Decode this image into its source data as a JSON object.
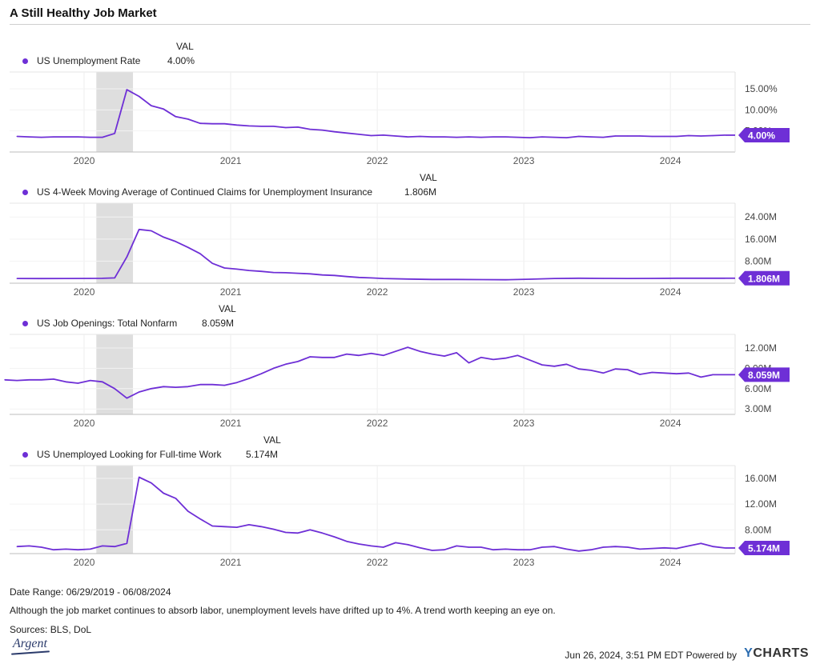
{
  "header": {
    "title": "A Still Healthy Job Market"
  },
  "legend_value_header": "VAL",
  "chart_data": [
    {
      "type": "line",
      "series": [
        {
          "name": "US Unemployment Rate",
          "value_label": "4.00%",
          "end_badge": "4.00%"
        }
      ],
      "x": [
        "2019-07",
        "2019-08",
        "2019-09",
        "2019-10",
        "2019-11",
        "2019-12",
        "2020-01",
        "2020-02",
        "2020-03",
        "2020-04",
        "2020-05",
        "2020-06",
        "2020-07",
        "2020-08",
        "2020-09",
        "2020-10",
        "2020-11",
        "2020-12",
        "2021-01",
        "2021-02",
        "2021-03",
        "2021-04",
        "2021-05",
        "2021-06",
        "2021-07",
        "2021-08",
        "2021-09",
        "2021-10",
        "2021-11",
        "2021-12",
        "2022-01",
        "2022-02",
        "2022-03",
        "2022-04",
        "2022-05",
        "2022-06",
        "2022-07",
        "2022-08",
        "2022-09",
        "2022-10",
        "2022-11",
        "2022-12",
        "2023-01",
        "2023-02",
        "2023-03",
        "2023-04",
        "2023-05",
        "2023-06",
        "2023-07",
        "2023-08",
        "2023-09",
        "2023-10",
        "2023-11",
        "2023-12",
        "2024-01",
        "2024-02",
        "2024-03",
        "2024-04",
        "2024-05"
      ],
      "values": [
        3.7,
        3.6,
        3.5,
        3.6,
        3.6,
        3.6,
        3.5,
        3.5,
        4.4,
        14.8,
        13.2,
        11.0,
        10.2,
        8.4,
        7.8,
        6.8,
        6.7,
        6.7,
        6.4,
        6.2,
        6.1,
        6.1,
        5.8,
        5.9,
        5.4,
        5.2,
        4.8,
        4.5,
        4.2,
        3.9,
        4.0,
        3.8,
        3.6,
        3.7,
        3.6,
        3.6,
        3.5,
        3.6,
        3.5,
        3.6,
        3.6,
        3.5,
        3.4,
        3.6,
        3.5,
        3.4,
        3.7,
        3.6,
        3.5,
        3.8,
        3.8,
        3.8,
        3.7,
        3.7,
        3.7,
        3.9,
        3.8,
        3.9,
        4.0
      ],
      "yticks": [
        "15.00%",
        "10.00%",
        "5.00%"
      ],
      "ytick_values": [
        15,
        10,
        5
      ],
      "xticks": [
        "2020",
        "2021",
        "2022",
        "2023",
        "2024"
      ],
      "ylim": [
        0,
        19
      ],
      "recession": [
        "2020-02",
        "2020-04"
      ],
      "color": "#6e2fd6"
    },
    {
      "type": "line",
      "series": [
        {
          "name": "US 4-Week Moving Average of Continued Claims for Unemployment Insurance",
          "value_label": "1.806M",
          "end_badge": "1.806M"
        }
      ],
      "x": [
        "2019-07",
        "2019-09",
        "2019-11",
        "2020-01",
        "2020-02",
        "2020-03",
        "2020-04",
        "2020-05",
        "2020-06",
        "2020-07",
        "2020-08",
        "2020-09",
        "2020-10",
        "2020-11",
        "2020-12",
        "2021-01",
        "2021-02",
        "2021-03",
        "2021-04",
        "2021-05",
        "2021-06",
        "2021-07",
        "2021-08",
        "2021-09",
        "2021-10",
        "2021-11",
        "2021-12",
        "2022-01",
        "2022-03",
        "2022-05",
        "2022-07",
        "2022-09",
        "2022-11",
        "2023-01",
        "2023-03",
        "2023-05",
        "2023-07",
        "2023-09",
        "2023-11",
        "2024-01",
        "2024-03",
        "2024-05"
      ],
      "values": [
        1.7,
        1.68,
        1.7,
        1.75,
        1.78,
        1.9,
        9.5,
        19.5,
        19.0,
        16.7,
        15.1,
        13.0,
        10.7,
        7.2,
        5.5,
        5.1,
        4.6,
        4.3,
        3.9,
        3.8,
        3.6,
        3.4,
        3.0,
        2.8,
        2.4,
        2.1,
        1.9,
        1.7,
        1.5,
        1.35,
        1.35,
        1.3,
        1.25,
        1.45,
        1.7,
        1.8,
        1.75,
        1.7,
        1.75,
        1.8,
        1.8,
        1.806
      ],
      "yticks": [
        "24.00M",
        "16.00M",
        "8.00M"
      ],
      "ytick_values": [
        24,
        16,
        8
      ],
      "xticks": [
        "2020",
        "2021",
        "2022",
        "2023",
        "2024"
      ],
      "ylim": [
        0,
        29
      ],
      "recession": [
        "2020-02",
        "2020-04"
      ],
      "color": "#6e2fd6"
    },
    {
      "type": "line",
      "series": [
        {
          "name": "US Job Openings: Total Nonfarm",
          "value_label": "8.059M",
          "end_badge": "8.059M"
        }
      ],
      "x": [
        "2019-06",
        "2019-07",
        "2019-08",
        "2019-09",
        "2019-10",
        "2019-11",
        "2019-12",
        "2020-01",
        "2020-02",
        "2020-03",
        "2020-04",
        "2020-05",
        "2020-06",
        "2020-07",
        "2020-08",
        "2020-09",
        "2020-10",
        "2020-11",
        "2020-12",
        "2021-01",
        "2021-02",
        "2021-03",
        "2021-04",
        "2021-05",
        "2021-06",
        "2021-07",
        "2021-08",
        "2021-09",
        "2021-10",
        "2021-11",
        "2021-12",
        "2022-01",
        "2022-02",
        "2022-03",
        "2022-04",
        "2022-05",
        "2022-06",
        "2022-07",
        "2022-08",
        "2022-09",
        "2022-10",
        "2022-11",
        "2022-12",
        "2023-01",
        "2023-02",
        "2023-03",
        "2023-04",
        "2023-05",
        "2023-06",
        "2023-07",
        "2023-08",
        "2023-09",
        "2023-10",
        "2023-11",
        "2023-12",
        "2024-01",
        "2024-02",
        "2024-03",
        "2024-04"
      ],
      "values": [
        7.3,
        7.2,
        7.3,
        7.3,
        7.4,
        7.0,
        6.8,
        7.2,
        7.0,
        6.0,
        4.6,
        5.5,
        6.0,
        6.3,
        6.2,
        6.3,
        6.6,
        6.6,
        6.5,
        6.9,
        7.5,
        8.2,
        9.0,
        9.6,
        10.0,
        10.7,
        10.6,
        10.6,
        11.1,
        10.9,
        11.2,
        10.9,
        11.5,
        12.1,
        11.5,
        11.1,
        10.8,
        11.3,
        9.8,
        10.6,
        10.3,
        10.5,
        10.9,
        10.2,
        9.5,
        9.3,
        9.6,
        8.9,
        8.7,
        8.3,
        8.9,
        8.8,
        8.1,
        8.4,
        8.3,
        8.2,
        8.3,
        7.7,
        8.059
      ],
      "yticks": [
        "12.00M",
        "9.00M",
        "6.00M",
        "3.00M"
      ],
      "ytick_values": [
        12,
        9,
        6,
        3
      ],
      "xticks": [
        "2020",
        "2021",
        "2022",
        "2023",
        "2024"
      ],
      "ylim": [
        2.2,
        14.0
      ],
      "recession": [
        "2020-02",
        "2020-04"
      ],
      "color": "#6e2fd6"
    },
    {
      "type": "line",
      "series": [
        {
          "name": "US Unemployed Looking for Full-time Work",
          "value_label": "5.174M",
          "end_badge": "5.174M"
        }
      ],
      "x": [
        "2019-07",
        "2019-08",
        "2019-09",
        "2019-10",
        "2019-11",
        "2019-12",
        "2020-01",
        "2020-02",
        "2020-03",
        "2020-04",
        "2020-05",
        "2020-06",
        "2020-07",
        "2020-08",
        "2020-09",
        "2020-10",
        "2020-11",
        "2020-12",
        "2021-01",
        "2021-02",
        "2021-03",
        "2021-04",
        "2021-05",
        "2021-06",
        "2021-07",
        "2021-08",
        "2021-09",
        "2021-10",
        "2021-11",
        "2021-12",
        "2022-01",
        "2022-02",
        "2022-03",
        "2022-04",
        "2022-05",
        "2022-06",
        "2022-07",
        "2022-08",
        "2022-09",
        "2022-10",
        "2022-11",
        "2022-12",
        "2023-01",
        "2023-02",
        "2023-03",
        "2023-04",
        "2023-05",
        "2023-06",
        "2023-07",
        "2023-08",
        "2023-09",
        "2023-10",
        "2023-11",
        "2023-12",
        "2024-01",
        "2024-02",
        "2024-03",
        "2024-04",
        "2024-05"
      ],
      "values": [
        5.4,
        5.5,
        5.3,
        4.9,
        5.0,
        4.9,
        5.0,
        5.5,
        5.4,
        5.9,
        16.2,
        15.3,
        13.7,
        12.9,
        10.9,
        9.7,
        8.6,
        8.5,
        8.4,
        8.8,
        8.5,
        8.1,
        7.6,
        7.5,
        8.0,
        7.5,
        6.9,
        6.2,
        5.8,
        5.5,
        5.3,
        6.0,
        5.7,
        5.2,
        4.8,
        4.9,
        5.5,
        5.3,
        5.3,
        4.9,
        5.0,
        4.9,
        4.9,
        5.3,
        5.4,
        5.0,
        4.7,
        4.9,
        5.3,
        5.4,
        5.3,
        5.0,
        5.1,
        5.2,
        5.1,
        5.5,
        5.9,
        5.4,
        5.174
      ],
      "yticks": [
        "16.00M",
        "12.00M",
        "8.00M"
      ],
      "ytick_values": [
        16,
        12,
        8
      ],
      "xticks": [
        "2020",
        "2021",
        "2022",
        "2023",
        "2024"
      ],
      "ylim": [
        4.3,
        18.0
      ],
      "recession": [
        "2020-02",
        "2020-04"
      ],
      "color": "#6e2fd6"
    }
  ],
  "footer": {
    "date_range": "Date Range: 06/29/2019 - 06/08/2024",
    "note": "Although the job market continues to absorb labor, unemployment levels have drifted up to 4%. A trend worth keeping an eye on.",
    "sources": "Sources: BLS, DoL",
    "logo": "Argent",
    "timestamp": "Jun 26, 2024, 3:51 PM EDT Powered by",
    "brand_y": "Y",
    "brand_rest": "CHARTS"
  }
}
